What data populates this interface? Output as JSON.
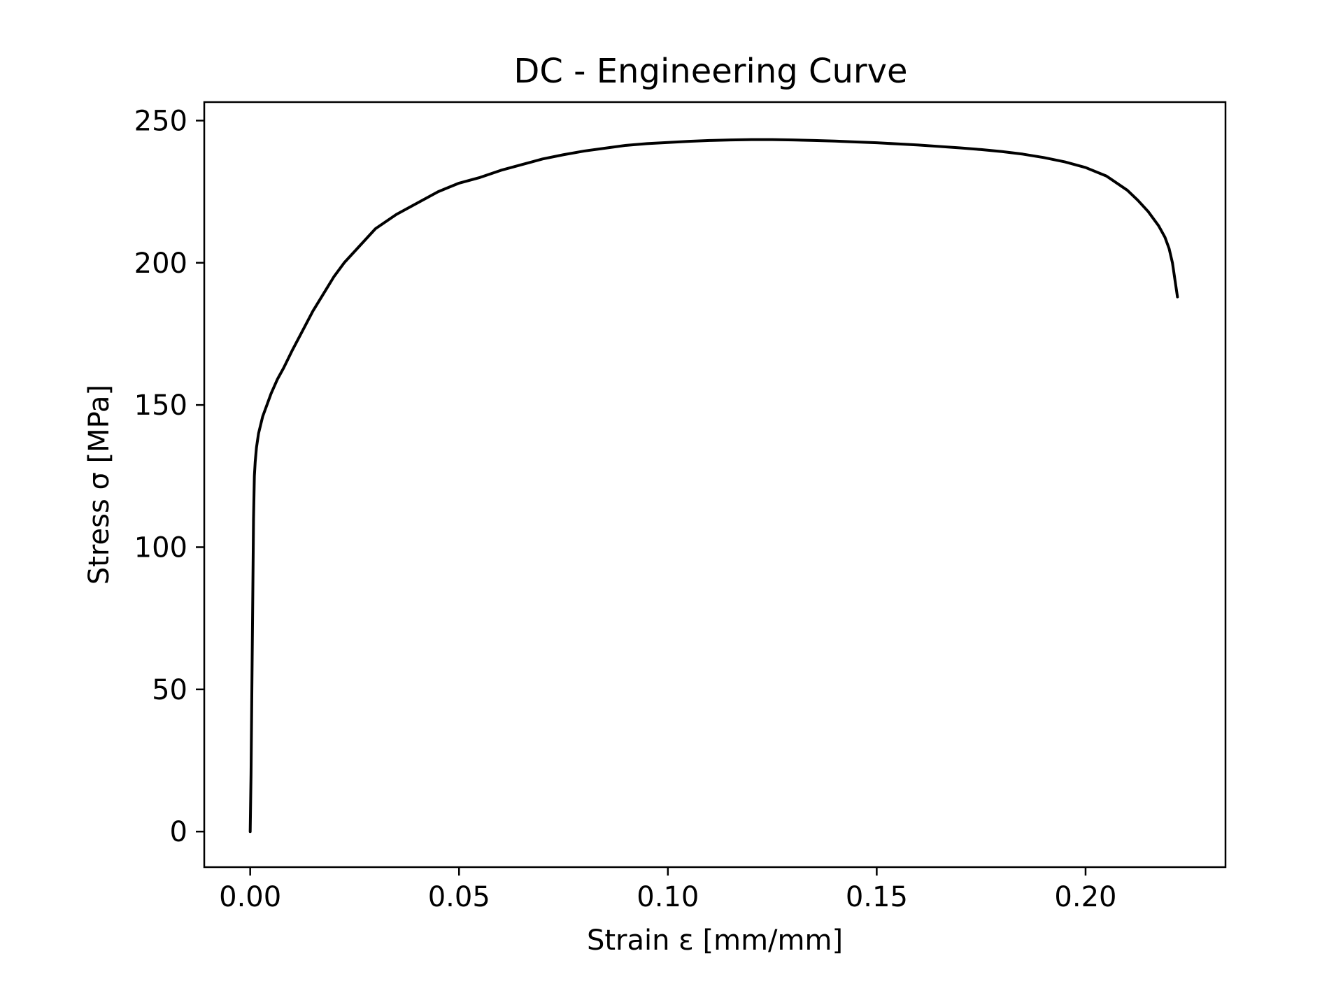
{
  "chart_data": {
    "type": "line",
    "title": "DC - Engineering Curve",
    "xlabel": "Strain ε [mm/mm]",
    "ylabel": "Stress σ [MPa]",
    "xlim": [
      -0.011,
      0.2335
    ],
    "ylim": [
      -12.5,
      256.5
    ],
    "xticks": [
      0.0,
      0.05,
      0.1,
      0.15,
      0.2
    ],
    "xtick_labels": [
      "0.00",
      "0.05",
      "0.10",
      "0.15",
      "0.20"
    ],
    "yticks": [
      0,
      50,
      100,
      150,
      200,
      250
    ],
    "ytick_labels": [
      "0",
      "50",
      "100",
      "150",
      "200",
      "250"
    ],
    "grid": false,
    "legend": "none",
    "line_color": "#000000",
    "series": [
      {
        "x": [
          0.0,
          0.0002,
          0.0004,
          0.0006,
          0.0008,
          0.001,
          0.0012,
          0.0015,
          0.002,
          0.003,
          0.004,
          0.005,
          0.0065,
          0.008,
          0.01,
          0.0125,
          0.015,
          0.0175,
          0.02,
          0.0225,
          0.025,
          0.0275,
          0.03,
          0.035,
          0.04,
          0.045,
          0.05,
          0.055,
          0.06,
          0.065,
          0.07,
          0.075,
          0.08,
          0.085,
          0.09,
          0.095,
          0.1,
          0.105,
          0.11,
          0.115,
          0.12,
          0.125,
          0.13,
          0.135,
          0.14,
          0.145,
          0.15,
          0.155,
          0.16,
          0.165,
          0.17,
          0.175,
          0.18,
          0.185,
          0.19,
          0.195,
          0.2,
          0.205,
          0.21,
          0.2125,
          0.215,
          0.2175,
          0.219,
          0.22,
          0.2208,
          0.2214,
          0.222
        ],
        "y": [
          0,
          20,
          50,
          80,
          110,
          125,
          130,
          135,
          140,
          146,
          150,
          154,
          159,
          163,
          169,
          176,
          183,
          189,
          195,
          200,
          204,
          208,
          212,
          217,
          221,
          225,
          228,
          230,
          232.5,
          234.5,
          236.5,
          238,
          239.3,
          240.3,
          241.3,
          241.9,
          242.3,
          242.7,
          243,
          243.2,
          243.3,
          243.3,
          243.2,
          243,
          242.8,
          242.5,
          242.2,
          241.8,
          241.4,
          240.9,
          240.4,
          239.8,
          239.1,
          238.2,
          237,
          235.5,
          233.5,
          230.5,
          225.5,
          222,
          218,
          213,
          209,
          205,
          200,
          194,
          188
        ]
      }
    ]
  }
}
